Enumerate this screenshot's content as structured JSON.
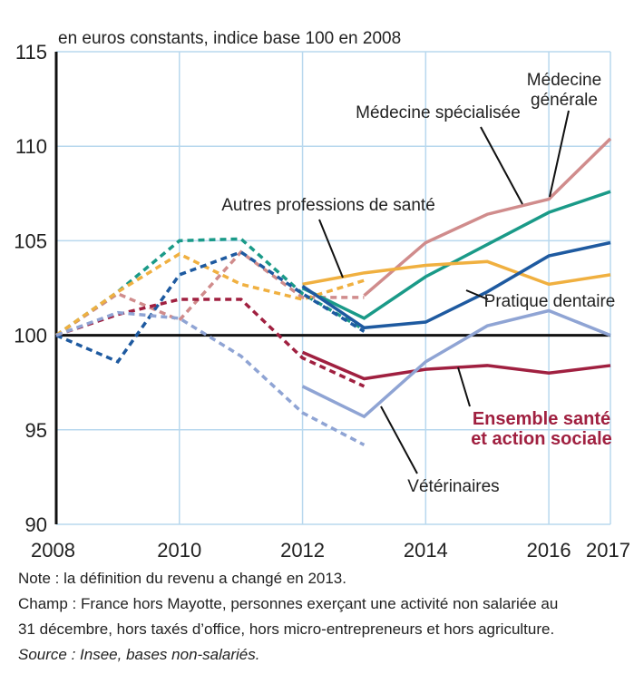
{
  "chart_data": {
    "type": "line",
    "title": "en euros constants, indice base 100 en 2008",
    "x": [
      2008,
      2009,
      2010,
      2011,
      2012,
      2013,
      2014,
      2015,
      2016,
      2017
    ],
    "xlim": [
      2008,
      2017
    ],
    "xticks": [
      2008,
      2010,
      2012,
      2014,
      2016,
      2017
    ],
    "ylim": [
      90,
      115
    ],
    "yticks": [
      90,
      95,
      100,
      105,
      110,
      115
    ],
    "reference_line": 100,
    "grid": true,
    "series": [
      {
        "name": [
          "Médecine",
          "générale"
        ],
        "color": "#d08c8c",
        "values_old": [
          100,
          102.2,
          100.8,
          104.4,
          102.0,
          102.0,
          null,
          null,
          null,
          null
        ],
        "values": [
          null,
          null,
          null,
          null,
          null,
          102.1,
          104.9,
          106.4,
          107.2,
          110.4
        ]
      },
      {
        "name": [
          "Médecine spécialisée"
        ],
        "color": "#1a9a88",
        "values_old": [
          100,
          102.3,
          105.0,
          105.1,
          102.2,
          100.3,
          null,
          null,
          null,
          null
        ],
        "values": [
          null,
          null,
          null,
          null,
          102.5,
          100.9,
          103.1,
          104.8,
          106.5,
          107.6
        ]
      },
      {
        "name": [
          "Autres professions de santé"
        ],
        "color": "#f0b040",
        "values_old": [
          100,
          102.3,
          104.3,
          102.7,
          101.9,
          102.9,
          null,
          null,
          null,
          null
        ],
        "values": [
          null,
          null,
          null,
          null,
          102.7,
          103.3,
          103.7,
          103.9,
          102.7,
          103.2
        ]
      },
      {
        "name": [
          "Pratique dentaire"
        ],
        "color": "#1e5aa0",
        "values_old": [
          100,
          98.6,
          103.2,
          104.4,
          102.2,
          100.2,
          null,
          null,
          null,
          null
        ],
        "values": [
          null,
          null,
          null,
          null,
          102.6,
          100.4,
          100.7,
          102.3,
          104.2,
          104.9
        ]
      },
      {
        "name": [
          "Ensemble santé",
          "et action sociale"
        ],
        "color": "#a02040",
        "values_old": [
          100,
          101.1,
          101.9,
          101.9,
          98.8,
          97.3,
          null,
          null,
          null,
          null
        ],
        "values": [
          null,
          null,
          null,
          null,
          99.1,
          97.7,
          98.2,
          98.4,
          98.0,
          98.4
        ]
      },
      {
        "name": [
          "Vétérinaires"
        ],
        "color": "#8fa4d4",
        "values_old": [
          100,
          101.2,
          100.9,
          98.9,
          95.9,
          94.2,
          null,
          null,
          null,
          null
        ],
        "values": [
          null,
          null,
          null,
          null,
          97.3,
          95.7,
          98.6,
          100.5,
          101.3,
          100.0
        ]
      }
    ],
    "notes": [
      "Note : la définition du revenu a changé en 2013.",
      "Champ : France hors Mayotte, personnes exerçant une activité non salariée au",
      "31 décembre, hors taxés d’office, hors micro-entrepreneurs et hors agriculture."
    ],
    "source": "Source : Insee, bases non-salariés."
  }
}
